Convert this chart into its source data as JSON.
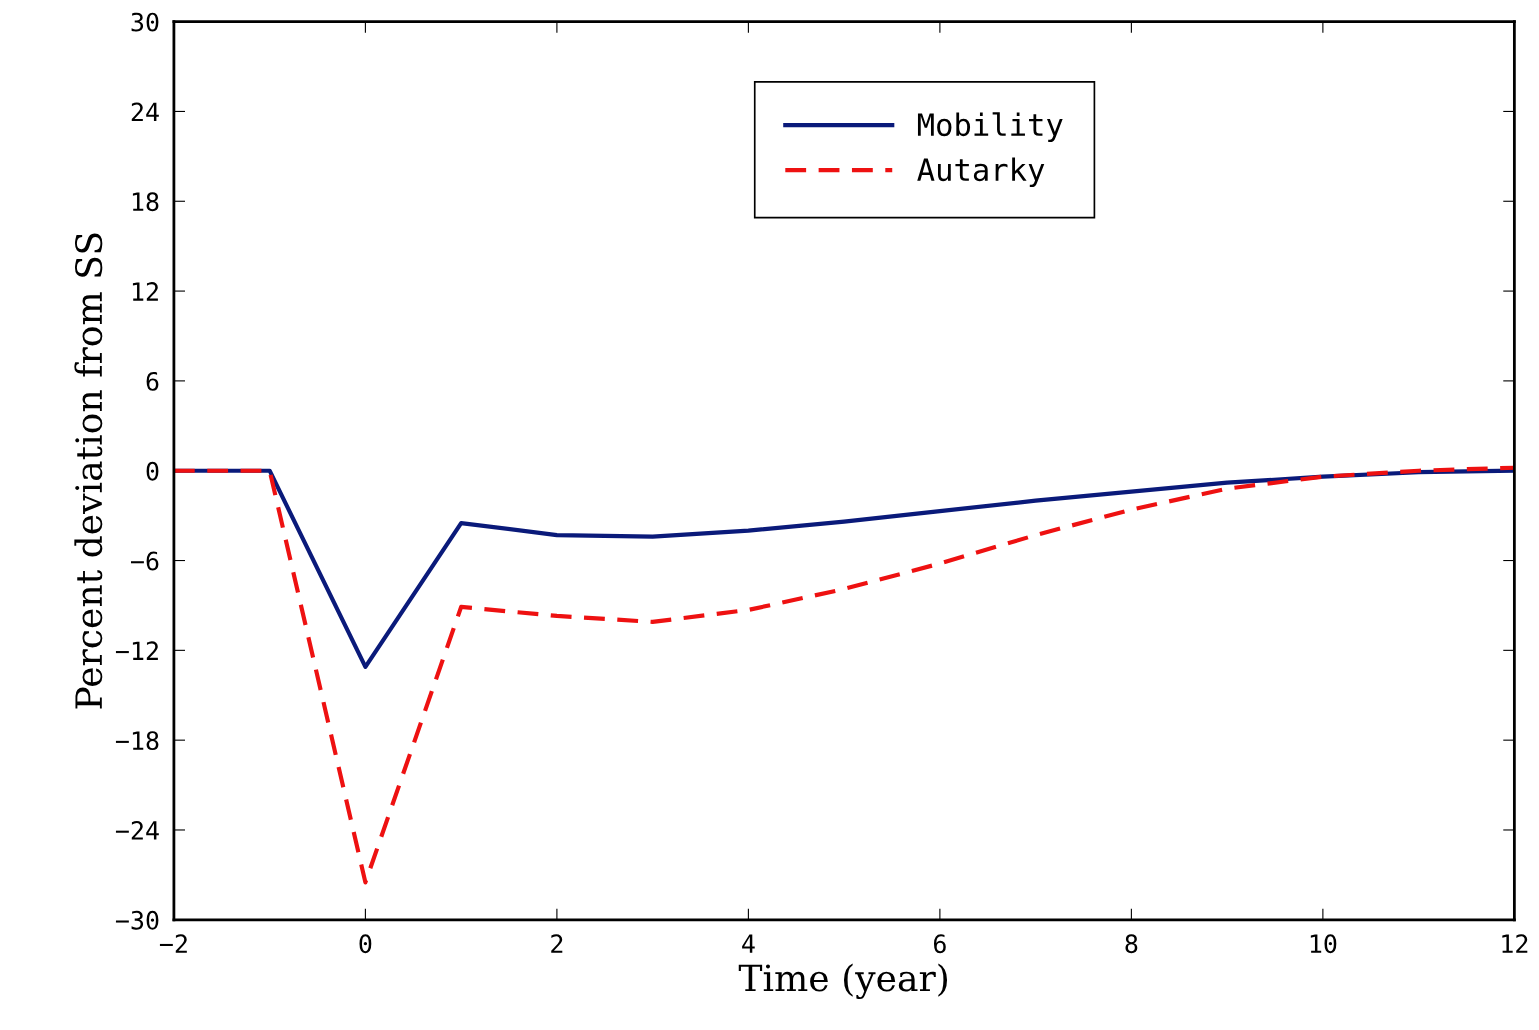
{
  "chart_data": {
    "type": "line",
    "xlabel": "Time (year)",
    "ylabel": "Percent deviation from SS",
    "x": [
      -2,
      -1,
      0,
      1,
      2,
      3,
      4,
      5,
      6,
      7,
      8,
      9,
      10,
      11,
      12
    ],
    "series": [
      {
        "name": "Mobility",
        "color": "#0a1a7a",
        "line_style": "solid",
        "values": [
          0,
          0,
          -13.1,
          -3.5,
          -4.3,
          -4.4,
          -4.0,
          -3.4,
          -2.7,
          -2.0,
          -1.4,
          -0.8,
          -0.4,
          -0.1,
          0
        ]
      },
      {
        "name": "Autarky",
        "color": "#ee1111",
        "line_style": "dashed",
        "values": [
          0,
          0,
          -27.5,
          -9.1,
          -9.7,
          -10.1,
          -9.3,
          -7.9,
          -6.2,
          -4.3,
          -2.6,
          -1.2,
          -0.4,
          0,
          0.2
        ]
      }
    ],
    "xlim": [
      -2,
      12
    ],
    "xticks": [
      {
        "value": -2,
        "label": "−2"
      },
      0,
      2,
      4,
      6,
      8,
      10,
      12
    ],
    "ylim": [
      -30,
      30
    ],
    "yticks": [
      {
        "value": -30,
        "label": "−30"
      },
      {
        "value": -24,
        "label": "−24"
      },
      {
        "value": -18,
        "label": "−18"
      },
      {
        "value": -12,
        "label": "−12"
      },
      {
        "value": -6,
        "label": "−6"
      },
      0,
      6,
      12,
      18,
      24,
      30
    ],
    "grid": false,
    "legend": "top",
    "marker": "none"
  }
}
